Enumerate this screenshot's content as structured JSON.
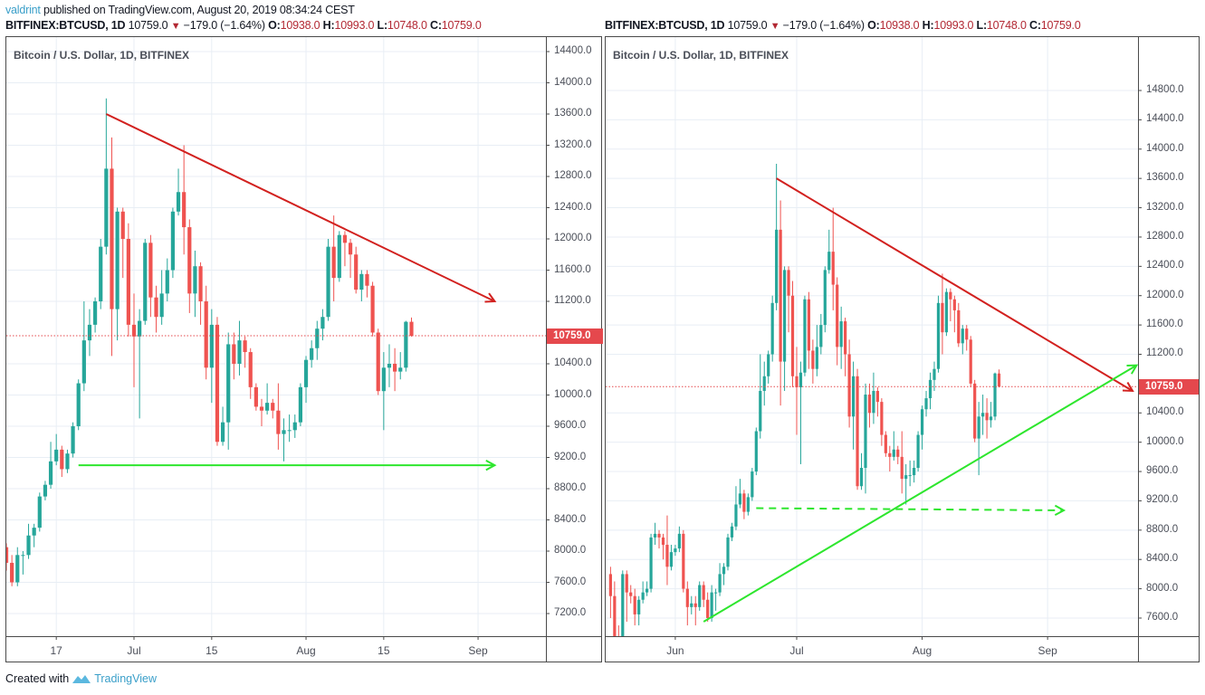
{
  "header": {
    "author": "valdrint",
    "published_text": " published on TradingView.com, August 20, 2019 08:34:24 CEST"
  },
  "symbol_line": {
    "symbol": "BITFINEX:BTCUSD, 1D",
    "last": "10759.0",
    "change": "−179.0 (−1.64%)",
    "o_label": "O:",
    "o": "10938.0",
    "h_label": "H:",
    "h": "10993.0",
    "l_label": "L:",
    "l": "10748.0",
    "c_label": "C:",
    "c": "10759.0",
    "down_icon": "triangle-down"
  },
  "footer": {
    "created_with": "Created with",
    "brand": "TradingView",
    "logo_icon": "tradingview-logo"
  },
  "colors": {
    "up": "#26a69a",
    "down": "#ef5350",
    "resistance": "#d2211f",
    "support": "#2ee62e",
    "grid": "#e8eef5",
    "price_line": "#e5484d"
  },
  "chart_data": [
    {
      "type": "candlestick",
      "title": "Bitcoin / U.S. Dollar, 1D, BITFINEX",
      "last_price_label": "10759.0",
      "ylim": [
        6800,
        14750
      ],
      "y_ticks": [
        "14400.0",
        "14000.0",
        "13600.0",
        "13200.0",
        "12800.0",
        "12400.0",
        "12000.0",
        "11600.0",
        "11200.0",
        "10400.0",
        "10000.0",
        "9600.0",
        "9200.0",
        "8800.0",
        "8400.0",
        "8000.0",
        "7600.0",
        "7200.0"
      ],
      "x_ticks": [
        "17",
        "Jul",
        "15",
        "Aug",
        "15",
        "Sep"
      ],
      "x_range": [
        "2019-06-08",
        "2019-09-10"
      ],
      "annotations": [
        {
          "type": "trendline",
          "color": "red",
          "label": "descending resistance",
          "from": [
            "2019-06-26",
            13600
          ],
          "to": [
            "2019-09-04",
            11200
          ],
          "arrow": true
        },
        {
          "type": "horizontal",
          "color": "green",
          "label": "support",
          "from": [
            "2019-06-21",
            9100
          ],
          "to": [
            "2019-09-04",
            9100
          ],
          "arrow": true
        }
      ]
    },
    {
      "type": "candlestick",
      "title": "Bitcoin / U.S. Dollar, 1D, BITFINEX",
      "last_price_label": "10759.0",
      "ylim": [
        7350,
        15350
      ],
      "y_ticks": [
        "14800.0",
        "14400.0",
        "14000.0",
        "13600.0",
        "13200.0",
        "12800.0",
        "12400.0",
        "12000.0",
        "11600.0",
        "11200.0",
        "10400.0",
        "10000.0",
        "9600.0",
        "9200.0",
        "8800.0",
        "8400.0",
        "8000.0",
        "7600.0"
      ],
      "x_ticks": [
        "Jun",
        "Jul",
        "Aug",
        "Sep"
      ],
      "x_range": [
        "2019-05-16",
        "2019-10-01"
      ],
      "annotations": [
        {
          "type": "trendline",
          "color": "red",
          "label": "descending resistance",
          "from": [
            "2019-06-26",
            13600
          ],
          "to": [
            "2019-09-22",
            10700
          ],
          "arrow": true
        },
        {
          "type": "trendline",
          "color": "green",
          "label": "ascending support",
          "from": [
            "2019-06-08",
            7550
          ],
          "to": [
            "2019-09-23",
            11050
          ],
          "arrow": true
        },
        {
          "type": "horizontal-dashed",
          "color": "green",
          "label": "horizontal support",
          "from": [
            "2019-06-21",
            9100
          ],
          "to": [
            "2019-09-05",
            9070
          ],
          "arrow": true
        }
      ]
    }
  ],
  "candles": [
    [
      "2019-05-16",
      8200,
      8300,
      7600,
      7900
    ],
    [
      "2019-05-17",
      7900,
      8100,
      7000,
      7300
    ],
    [
      "2019-05-18",
      7300,
      7500,
      7150,
      7250
    ],
    [
      "2019-05-19",
      7250,
      8250,
      7200,
      8200
    ],
    [
      "2019-05-20",
      8200,
      8250,
      7550,
      7950
    ],
    [
      "2019-05-21",
      7950,
      8050,
      7800,
      7900
    ],
    [
      "2019-05-22",
      7900,
      8000,
      7500,
      7650
    ],
    [
      "2019-05-23",
      7650,
      7900,
      7500,
      7850
    ],
    [
      "2019-05-24",
      7850,
      8100,
      7800,
      7950
    ],
    [
      "2019-05-25",
      7950,
      8100,
      7900,
      8000
    ],
    [
      "2019-05-26",
      8000,
      8750,
      7950,
      8700
    ],
    [
      "2019-05-27",
      8700,
      8900,
      8600,
      8750
    ],
    [
      "2019-05-28",
      8750,
      8800,
      8550,
      8700
    ],
    [
      "2019-05-29",
      8700,
      8750,
      8400,
      8600
    ],
    [
      "2019-05-30",
      8600,
      9000,
      8050,
      8300
    ],
    [
      "2019-05-31",
      8300,
      8600,
      8250,
      8500
    ],
    [
      "2019-06-01",
      8500,
      8600,
      8450,
      8550
    ],
    [
      "2019-06-02",
      8550,
      8850,
      8500,
      8750
    ],
    [
      "2019-06-03",
      8750,
      8800,
      7950,
      8000
    ],
    [
      "2019-06-04",
      8000,
      8100,
      7500,
      7750
    ],
    [
      "2019-06-05",
      7750,
      7900,
      7650,
      7800
    ],
    [
      "2019-06-06",
      7800,
      7900,
      7500,
      7750
    ],
    [
      "2019-06-07",
      7750,
      8100,
      7700,
      8050
    ],
    [
      "2019-06-08",
      8050,
      8100,
      7750,
      7850
    ],
    [
      "2019-06-09",
      7850,
      7950,
      7550,
      7600
    ],
    [
      "2019-06-10",
      7600,
      8050,
      7550,
      7950
    ],
    [
      "2019-06-11",
      7950,
      8000,
      7700,
      7950
    ],
    [
      "2019-06-12",
      7950,
      8350,
      7900,
      8200
    ],
    [
      "2019-06-13",
      8200,
      8350,
      8050,
      8300
    ],
    [
      "2019-06-14",
      8300,
      8750,
      8250,
      8700
    ],
    [
      "2019-06-15",
      8700,
      8900,
      8650,
      8850
    ],
    [
      "2019-06-16",
      8850,
      9400,
      8800,
      9150
    ],
    [
      "2019-06-17",
      9150,
      9500,
      9100,
      9300
    ],
    [
      "2019-06-18",
      9300,
      9350,
      8950,
      9050
    ],
    [
      "2019-06-19",
      9050,
      9300,
      9000,
      9250
    ],
    [
      "2019-06-20",
      9250,
      9650,
      9200,
      9600
    ],
    [
      "2019-06-21",
      9600,
      10200,
      9550,
      10150
    ],
    [
      "2019-06-22",
      10150,
      11200,
      10050,
      10700
    ],
    [
      "2019-06-23",
      10700,
      11100,
      10500,
      10900
    ],
    [
      "2019-06-24",
      10900,
      11250,
      10800,
      11200
    ],
    [
      "2019-06-25",
      11200,
      12000,
      11100,
      11900
    ],
    [
      "2019-06-26",
      11900,
      13800,
      11800,
      12900
    ],
    [
      "2019-06-27",
      12900,
      13300,
      10500,
      11100
    ],
    [
      "2019-06-28",
      11100,
      12400,
      10700,
      12350
    ],
    [
      "2019-06-29",
      12350,
      12400,
      11500,
      12000
    ],
    [
      "2019-06-30",
      12000,
      12200,
      10750,
      10900
    ],
    [
      "2019-07-01",
      10900,
      11300,
      10100,
      10750
    ],
    [
      "2019-07-02",
      10750,
      11100,
      9700,
      10950
    ],
    [
      "2019-07-03",
      10950,
      12000,
      10900,
      11950
    ],
    [
      "2019-07-04",
      11950,
      12050,
      11000,
      11250
    ],
    [
      "2019-07-05",
      11250,
      11400,
      10800,
      11000
    ],
    [
      "2019-07-06",
      11000,
      11600,
      10900,
      11300
    ],
    [
      "2019-07-07",
      11300,
      11750,
      11200,
      11600
    ],
    [
      "2019-07-08",
      11600,
      12400,
      11500,
      12350
    ],
    [
      "2019-07-09",
      12350,
      12900,
      12300,
      12600
    ],
    [
      "2019-07-10",
      12600,
      13200,
      11800,
      12150
    ],
    [
      "2019-07-11",
      12150,
      12250,
      11050,
      11300
    ],
    [
      "2019-07-12",
      11300,
      11850,
      11000,
      11650
    ],
    [
      "2019-07-13",
      11650,
      11700,
      10900,
      11200
    ],
    [
      "2019-07-14",
      11200,
      11400,
      10200,
      10350
    ],
    [
      "2019-07-15",
      10350,
      11100,
      9900,
      10900
    ],
    [
      "2019-07-16",
      10900,
      11000,
      9350,
      9400
    ],
    [
      "2019-07-17",
      9400,
      9850,
      9350,
      9650
    ],
    [
      "2019-07-18",
      9650,
      10800,
      9300,
      10650
    ],
    [
      "2019-07-19",
      10650,
      10800,
      10200,
      10400
    ],
    [
      "2019-07-20",
      10400,
      10950,
      10250,
      10700
    ],
    [
      "2019-07-21",
      10700,
      10750,
      10350,
      10550
    ],
    [
      "2019-07-22",
      10550,
      10600,
      9950,
      10100
    ],
    [
      "2019-07-23",
      10100,
      10150,
      9800,
      9850
    ],
    [
      "2019-07-24",
      9850,
      9950,
      9600,
      9800
    ],
    [
      "2019-07-25",
      9800,
      10150,
      9750,
      9900
    ],
    [
      "2019-07-26",
      9900,
      9950,
      9700,
      9800
    ],
    [
      "2019-07-27",
      9800,
      10150,
      9300,
      9500
    ],
    [
      "2019-07-28",
      9500,
      9700,
      9150,
      9550
    ],
    [
      "2019-07-29",
      9550,
      9750,
      9400,
      9550
    ],
    [
      "2019-07-30",
      9550,
      9750,
      9450,
      9650
    ],
    [
      "2019-07-31",
      9650,
      10150,
      9600,
      10100
    ],
    [
      "2019-08-01",
      10100,
      10500,
      9900,
      10450
    ],
    [
      "2019-08-02",
      10450,
      10700,
      10350,
      10600
    ],
    [
      "2019-08-03",
      10600,
      10950,
      10450,
      10850
    ],
    [
      "2019-08-04",
      10850,
      11100,
      10700,
      11000
    ],
    [
      "2019-08-05",
      11000,
      12000,
      10950,
      11900
    ],
    [
      "2019-08-06",
      11900,
      12300,
      11200,
      11500
    ],
    [
      "2019-08-07",
      11500,
      12100,
      11450,
      12050
    ],
    [
      "2019-08-08",
      12050,
      12100,
      11650,
      11950
    ],
    [
      "2019-08-09",
      11950,
      12000,
      11500,
      11800
    ],
    [
      "2019-08-10",
      11800,
      11900,
      11300,
      11350
    ],
    [
      "2019-08-11",
      11350,
      11600,
      11200,
      11550
    ],
    [
      "2019-08-12",
      11550,
      11600,
      11250,
      11400
    ],
    [
      "2019-08-13",
      11400,
      11450,
      10750,
      10800
    ],
    [
      "2019-08-14",
      10800,
      10850,
      10000,
      10050
    ],
    [
      "2019-08-15",
      10050,
      10550,
      9550,
      10350
    ],
    [
      "2019-08-16",
      10350,
      10650,
      10100,
      10400
    ],
    [
      "2019-08-17",
      10400,
      10600,
      10050,
      10300
    ],
    [
      "2019-08-18",
      10300,
      10550,
      10200,
      10350
    ],
    [
      "2019-08-19",
      10350,
      10950,
      10300,
      10938
    ],
    [
      "2019-08-20",
      10938,
      10993,
      10748,
      10759
    ]
  ]
}
